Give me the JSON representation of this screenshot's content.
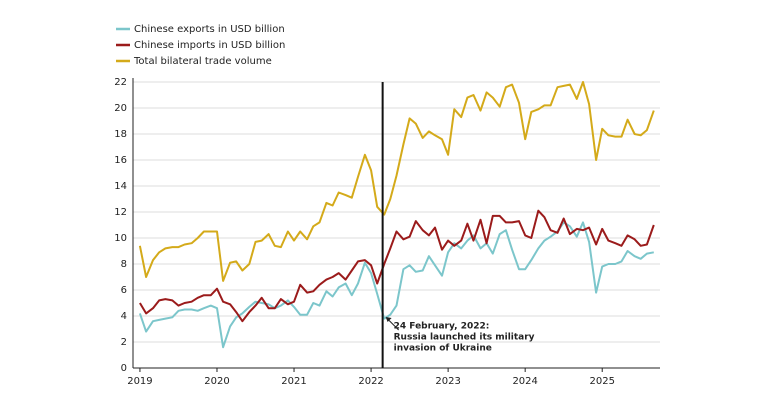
{
  "chart_data": {
    "type": "line",
    "x": [
      2019.0,
      2019.08,
      2019.17,
      2019.25,
      2019.33,
      2019.42,
      2019.5,
      2019.58,
      2019.67,
      2019.75,
      2019.83,
      2019.92,
      2020.0,
      2020.08,
      2020.17,
      2020.25,
      2020.33,
      2020.42,
      2020.5,
      2020.58,
      2020.67,
      2020.75,
      2020.83,
      2020.92,
      2021.0,
      2021.08,
      2021.17,
      2021.25,
      2021.33,
      2021.42,
      2021.5,
      2021.58,
      2021.67,
      2021.75,
      2021.83,
      2021.92,
      2022.0,
      2022.08,
      2022.17,
      2022.25,
      2022.33,
      2022.42,
      2022.5,
      2022.58,
      2022.67,
      2022.75,
      2022.83,
      2022.92,
      2023.0,
      2023.08,
      2023.17,
      2023.25,
      2023.33,
      2023.42,
      2023.5,
      2023.58,
      2023.67,
      2023.75,
      2023.83,
      2023.92,
      2024.0,
      2024.08,
      2024.17,
      2024.25,
      2024.33,
      2024.42,
      2024.5,
      2024.58,
      2024.67,
      2024.75,
      2024.83,
      2024.92,
      2025.0,
      2025.08,
      2025.17,
      2025.25,
      2025.33,
      2025.42,
      2025.5,
      2025.58,
      2025.67
    ],
    "series": [
      {
        "name": "Chinese exports in USD billion",
        "color": "#7cc6cb",
        "values": [
          4.2,
          2.8,
          3.6,
          3.7,
          3.8,
          3.9,
          4.4,
          4.5,
          4.5,
          4.4,
          4.6,
          4.8,
          4.6,
          1.6,
          3.2,
          3.9,
          4.2,
          4.7,
          5.1,
          5.0,
          4.9,
          4.6,
          4.8,
          5.2,
          4.7,
          4.1,
          4.1,
          5.0,
          4.8,
          5.9,
          5.5,
          6.2,
          6.5,
          5.6,
          6.5,
          8.1,
          7.3,
          5.7,
          3.8,
          4.1,
          4.8,
          7.6,
          7.9,
          7.4,
          7.5,
          8.6,
          7.9,
          7.1,
          8.9,
          9.6,
          9.2,
          9.8,
          10.2,
          9.2,
          9.6,
          8.8,
          10.3,
          10.6,
          9.1,
          7.6,
          7.6,
          8.3,
          9.2,
          9.8,
          10.1,
          10.5,
          11.2,
          10.9,
          10.1,
          11.2,
          9.7,
          5.8,
          7.8,
          8.0,
          8.0,
          8.2,
          9.0,
          8.6,
          8.4,
          8.8,
          8.9
        ]
      },
      {
        "name": "Chinese imports in USD billion",
        "color": "#9b1b1b",
        "values": [
          5.0,
          4.2,
          4.6,
          5.2,
          5.3,
          5.2,
          4.8,
          5.0,
          5.1,
          5.4,
          5.6,
          5.6,
          6.1,
          5.1,
          4.9,
          4.3,
          3.6,
          4.3,
          4.8,
          5.4,
          4.6,
          4.6,
          5.3,
          4.9,
          5.1,
          6.4,
          5.8,
          5.9,
          6.4,
          6.8,
          7.0,
          7.3,
          6.8,
          7.5,
          8.2,
          8.3,
          7.9,
          6.5,
          8.0,
          9.2,
          10.5,
          9.9,
          10.1,
          11.3,
          10.6,
          10.2,
          10.8,
          9.1,
          9.8,
          9.4,
          9.8,
          11.1,
          9.8,
          11.4,
          9.6,
          11.7,
          11.7,
          11.2,
          11.2,
          11.3,
          10.2,
          10.0,
          12.1,
          11.6,
          10.6,
          10.4,
          11.5,
          10.3,
          10.7,
          10.6,
          10.8,
          9.5,
          10.7,
          9.8,
          9.6,
          9.4,
          10.2,
          9.9,
          9.4,
          9.5,
          11.0
        ]
      },
      {
        "name": "Total bilateral trade volume",
        "color": "#d4aa1a",
        "values": [
          9.4,
          7.0,
          8.3,
          8.9,
          9.2,
          9.3,
          9.3,
          9.5,
          9.6,
          10.0,
          10.5,
          10.5,
          10.5,
          6.7,
          8.1,
          8.2,
          7.5,
          8.0,
          9.7,
          9.8,
          10.3,
          9.4,
          9.3,
          10.5,
          9.8,
          10.5,
          9.9,
          10.9,
          11.2,
          12.7,
          12.5,
          13.5,
          13.3,
          13.1,
          14.7,
          16.4,
          15.2,
          12.4,
          11.8,
          13.0,
          14.8,
          17.2,
          19.2,
          18.8,
          17.7,
          18.2,
          17.9,
          17.6,
          16.4,
          19.9,
          19.3,
          20.8,
          21.0,
          19.8,
          21.2,
          20.8,
          20.1,
          21.6,
          21.8,
          20.4,
          17.6,
          19.7,
          19.9,
          20.2,
          20.2,
          21.6,
          21.7,
          21.8,
          20.7,
          22.0,
          20.3,
          16.0,
          18.4,
          17.9,
          17.8,
          17.8,
          19.1,
          18.0,
          17.9,
          18.3,
          19.8
        ]
      }
    ],
    "xlim": [
      2018.91,
      2025.75
    ],
    "xticks": [
      2019,
      2020,
      2021,
      2022,
      2023,
      2024,
      2025
    ],
    "ylim": [
      0,
      22
    ],
    "yticks": [
      0,
      2,
      4,
      6,
      8,
      10,
      12,
      14,
      16,
      18,
      20,
      22
    ],
    "grid": true,
    "annotation": {
      "x": 2022.15,
      "lines": [
        "24 February, 2022:",
        "Russia launched its military",
        "invasion of Ukraine"
      ]
    }
  }
}
